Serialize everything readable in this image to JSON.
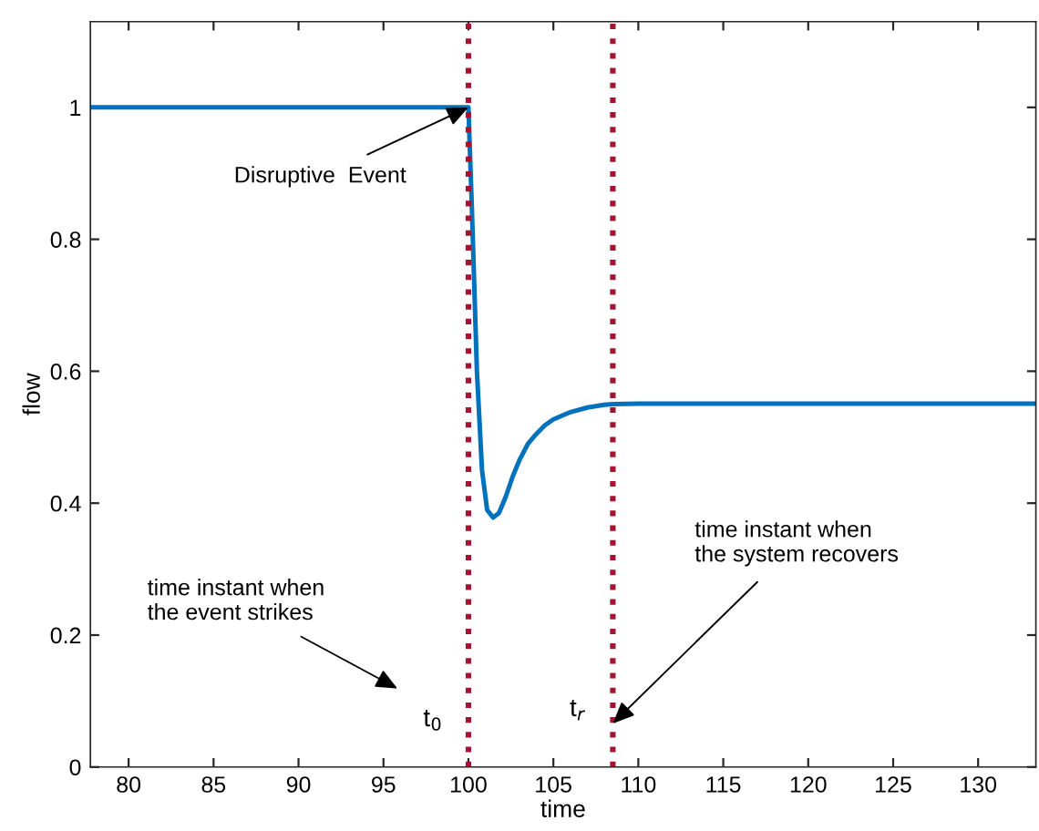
{
  "chart_data": {
    "type": "line",
    "xlabel": "time",
    "ylabel": "flow",
    "series": [
      {
        "color": "#0072bd",
        "x": [
          77.75,
          80,
          85,
          90,
          95,
          99.5,
          100,
          100.2,
          100.5,
          100.8,
          101.1,
          101.45,
          101.8,
          102.2,
          102.6,
          103,
          103.5,
          104,
          104.5,
          105,
          106,
          107,
          108,
          108.5,
          110,
          115,
          120,
          125,
          130,
          133.4
        ],
        "values": [
          1,
          1,
          1,
          1,
          1,
          1,
          1,
          0.85,
          0.6,
          0.45,
          0.39,
          0.378,
          0.385,
          0.41,
          0.44,
          0.465,
          0.49,
          0.505,
          0.518,
          0.527,
          0.538,
          0.545,
          0.549,
          0.55,
          0.551,
          0.551,
          0.551,
          0.551,
          0.551,
          0.551
        ]
      }
    ],
    "xlim": [
      77.75,
      133.4
    ],
    "ylim": [
      0,
      1.13
    ],
    "xticks": [
      80,
      85,
      90,
      95,
      100,
      105,
      110,
      115,
      120,
      125,
      130
    ],
    "yticks": [
      0,
      0.2,
      0.4,
      0.6,
      0.8,
      1
    ],
    "grid": false,
    "marker": "none",
    "line_style": "solid",
    "ref_lines": [
      {
        "axis": "x",
        "value": 100,
        "label": "t$_{0}$",
        "color": "#a2142f",
        "line_style": "dotted"
      },
      {
        "axis": "x",
        "value": 108.5,
        "label": "t$_{r}$",
        "color": "#a2142f",
        "line_style": "dotted"
      }
    ],
    "annotations": [
      {
        "text": "Disruptive  Event",
        "x": 100,
        "y": 1
      },
      "time instant when\nthe event strikes",
      {
        "text": "time instant when\nthe system recovers",
        "x": 108.5,
        "y": 0.066
      }
    ]
  }
}
